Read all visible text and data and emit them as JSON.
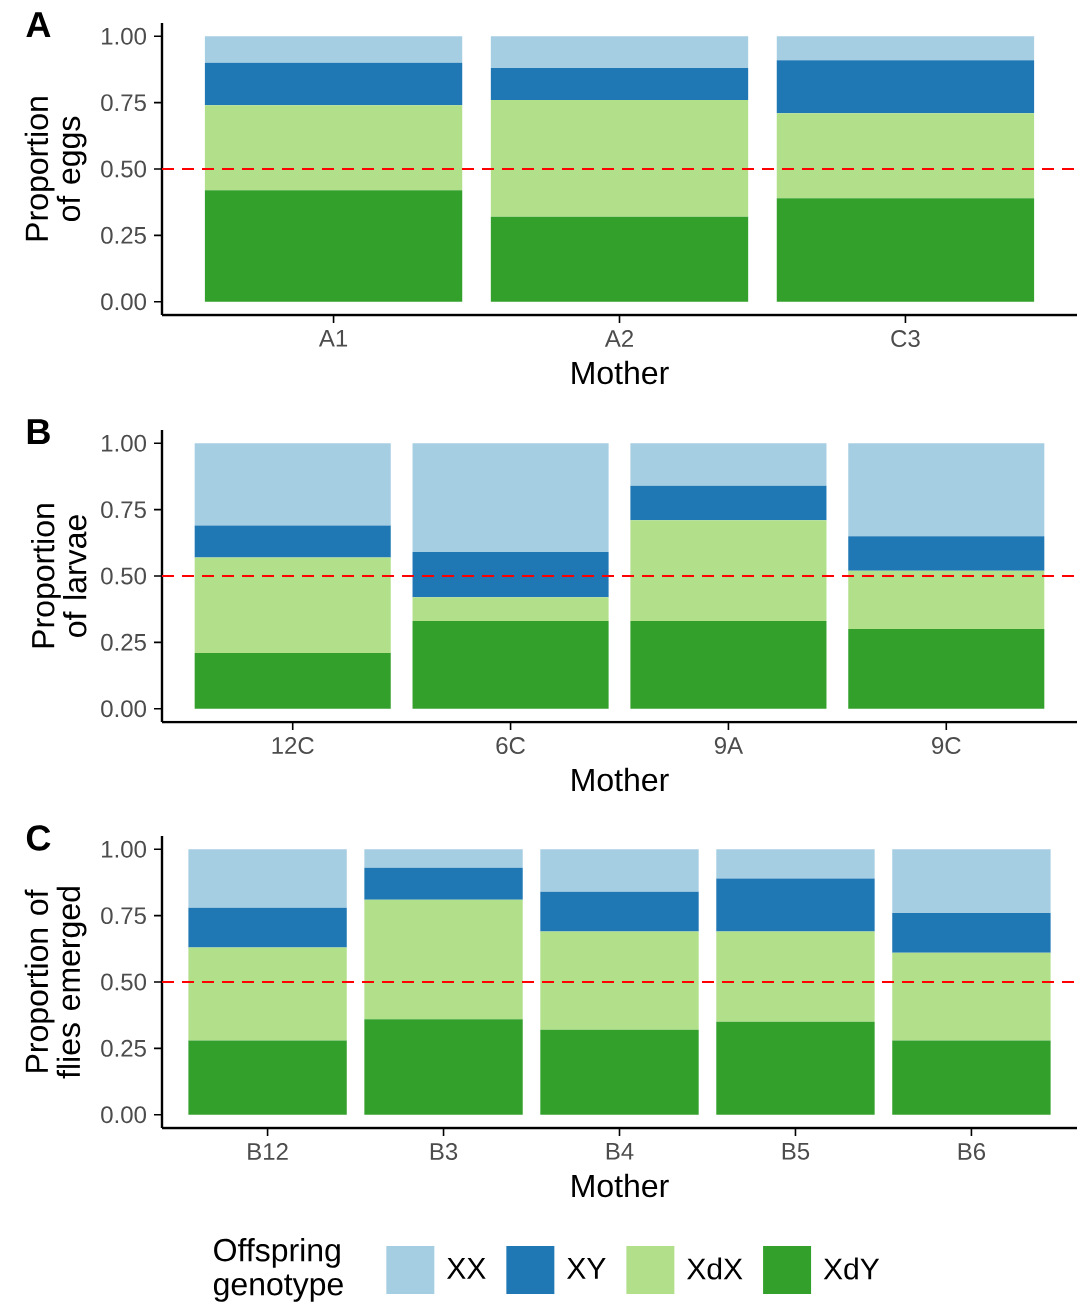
{
  "chart_data": [
    {
      "type": "bar",
      "title": "A",
      "xlabel": "Mother",
      "ylabel": "Proportion of eggs",
      "categories": [
        "A1",
        "A2",
        "C3"
      ],
      "stacked": true,
      "series": [
        {
          "color": "#33a02c",
          "values": [
            0.42,
            0.32,
            0.39
          ]
        },
        {
          "color": "#b2df8a",
          "values": [
            0.32,
            0.44,
            0.32
          ]
        },
        {
          "color": "#1f78b4",
          "values": [
            0.16,
            0.12,
            0.2
          ]
        },
        {
          "color": "#a6cee3",
          "values": [
            0.1,
            0.12,
            0.09
          ]
        }
      ],
      "ylim": [
        -0.05,
        1.05
      ],
      "yticks": [
        {
          "value": 0,
          "label": "0.00"
        },
        {
          "value": 0.25,
          "label": "0.25"
        },
        {
          "value": 0.5,
          "label": "0.50"
        },
        {
          "value": 0.75,
          "label": "0.75"
        },
        {
          "value": 1,
          "label": "1.00"
        }
      ],
      "ref_lines": [
        {
          "axis": "y",
          "value": 0.5,
          "color": "#ff0000",
          "line_style": "dashed"
        }
      ]
    },
    {
      "type": "bar",
      "title": "B",
      "xlabel": "Mother",
      "ylabel": "Proportion of larvae",
      "categories": [
        "12C",
        "6C",
        "9A",
        "9C"
      ],
      "stacked": true,
      "series": [
        {
          "color": "#33a02c",
          "values": [
            0.21,
            0.33,
            0.33,
            0.3
          ]
        },
        {
          "color": "#b2df8a",
          "values": [
            0.36,
            0.09,
            0.38,
            0.22
          ]
        },
        {
          "color": "#1f78b4",
          "values": [
            0.12,
            0.17,
            0.13,
            0.13
          ]
        },
        {
          "color": "#a6cee3",
          "values": [
            0.31,
            0.41,
            0.16,
            0.35
          ]
        }
      ],
      "ylim": [
        -0.05,
        1.05
      ],
      "yticks": [
        {
          "value": 0,
          "label": "0.00"
        },
        {
          "value": 0.25,
          "label": "0.25"
        },
        {
          "value": 0.5,
          "label": "0.50"
        },
        {
          "value": 0.75,
          "label": "0.75"
        },
        {
          "value": 1,
          "label": "1.00"
        }
      ],
      "ref_lines": [
        {
          "axis": "y",
          "value": 0.5,
          "color": "#ff0000",
          "line_style": "dashed"
        }
      ]
    },
    {
      "type": "bar",
      "title": "C",
      "xlabel": "Mother",
      "ylabel": "Proportion of flies emerged",
      "categories": [
        "B12",
        "B3",
        "B4",
        "B5",
        "B6"
      ],
      "stacked": true,
      "series": [
        {
          "name": "XdY",
          "color": "#33a02c",
          "values": [
            0.28,
            0.36,
            0.32,
            0.35,
            0.28
          ]
        },
        {
          "name": "XdX",
          "color": "#b2df8a",
          "values": [
            0.35,
            0.45,
            0.37,
            0.34,
            0.33
          ]
        },
        {
          "name": "XY",
          "color": "#1f78b4",
          "values": [
            0.15,
            0.12,
            0.15,
            0.2,
            0.15
          ]
        },
        {
          "name": "XX",
          "color": "#a6cee3",
          "values": [
            0.22,
            0.07,
            0.16,
            0.11,
            0.24
          ]
        }
      ],
      "ylim": [
        -0.05,
        1.05
      ],
      "yticks": [
        {
          "value": 0,
          "label": "0.00"
        },
        {
          "value": 0.25,
          "label": "0.25"
        },
        {
          "value": 0.5,
          "label": "0.50"
        },
        {
          "value": 0.75,
          "label": "0.75"
        },
        {
          "value": 1,
          "label": "1.00"
        }
      ],
      "ref_lines": [
        {
          "axis": "y",
          "value": 0.5,
          "color": "#ff0000",
          "line_style": "dashed"
        }
      ],
      "legend": "bottom",
      "legend_title": "Offspring genotype"
    }
  ]
}
